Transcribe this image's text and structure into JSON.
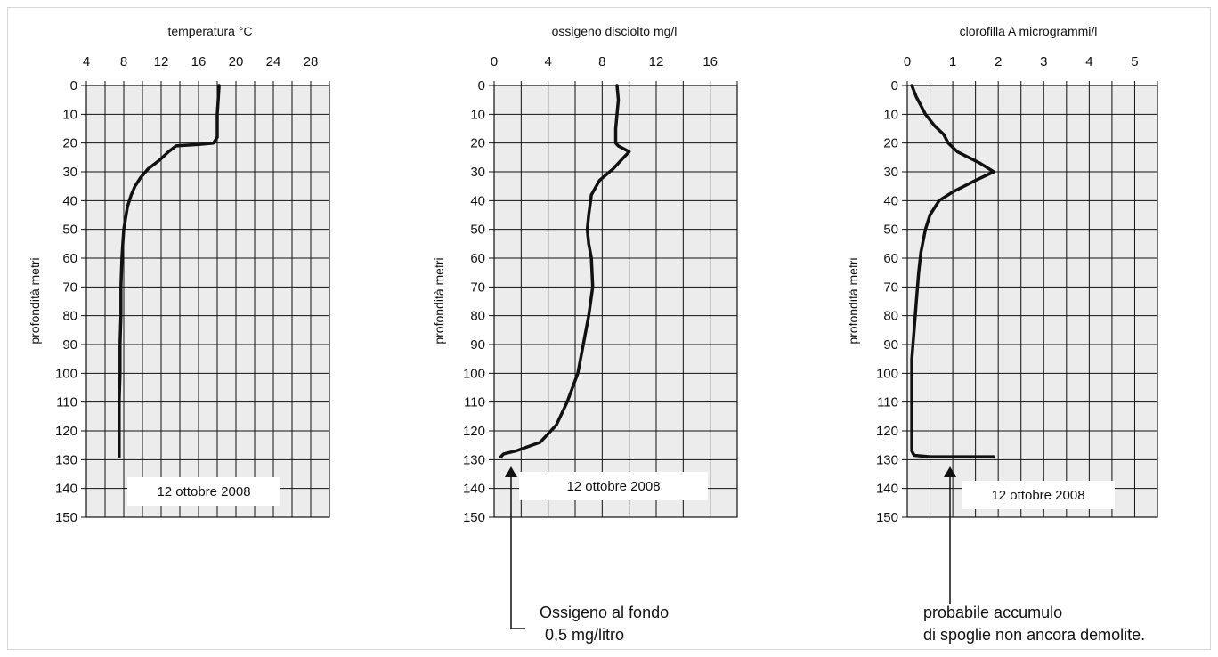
{
  "charts": [
    {
      "title": "temperatura °C",
      "ylabel": "profondità metri",
      "xticks": [
        "4",
        "8",
        "12",
        "16",
        "20",
        "24",
        "28"
      ],
      "yticks": [
        "0",
        "10",
        "20",
        "30",
        "40",
        "50",
        "60",
        "70",
        "80",
        "90",
        "100",
        "110",
        "120",
        "130",
        "140",
        "150"
      ],
      "date_label": "12 ottobre 2008"
    },
    {
      "title": "ossigeno disciolto mg/l",
      "ylabel": "profondità metri",
      "xticks": [
        "0",
        "4",
        "8",
        "12",
        "16"
      ],
      "yticks": [
        "0",
        "10",
        "20",
        "30",
        "40",
        "50",
        "60",
        "70",
        "80",
        "90",
        "100",
        "110",
        "120",
        "130",
        "140",
        "150"
      ],
      "date_label": "12 ottobre 2008",
      "annotation": [
        "Ossigeno al fondo",
        "0,5 mg/litro"
      ]
    },
    {
      "title": "clorofilla A microgrammi/l",
      "ylabel": "profondità metri",
      "xticks": [
        "0",
        "1",
        "2",
        "3",
        "4",
        "5"
      ],
      "yticks": [
        "0",
        "10",
        "20",
        "30",
        "40",
        "50",
        "60",
        "70",
        "80",
        "90",
        "100",
        "110",
        "120",
        "130",
        "140",
        "150"
      ],
      "date_label": "12 ottobre 2008",
      "annotation": [
        "probabile accumulo",
        "di spoglie non ancora demolite."
      ]
    }
  ],
  "chart_data": [
    {
      "type": "line",
      "title": "temperatura °C",
      "xlabel": "",
      "ylabel": "profondità metri",
      "xlim": [
        4,
        30
      ],
      "ylim": [
        0,
        150
      ],
      "y_inverted": true,
      "x_axis_position": "top",
      "grid": true,
      "series": [
        {
          "x": [
            18.2,
            18.1,
            18.0,
            18.0,
            18.0,
            17.6,
            16.0,
            13.6,
            12.8,
            11.8,
            10.6,
            9.8,
            9.2,
            8.8,
            8.4,
            8.2,
            8.0,
            7.9,
            7.8,
            7.7,
            7.7,
            7.6,
            7.6,
            7.5,
            7.5
          ],
          "y": [
            0,
            5,
            10,
            15,
            18,
            20,
            20.5,
            21,
            23,
            26,
            29,
            32,
            35,
            38,
            42,
            46,
            50,
            55,
            60,
            70,
            80,
            90,
            100,
            110,
            129
          ]
        }
      ]
    },
    {
      "type": "line",
      "title": "ossigeno disciolto mg/l",
      "xlabel": "",
      "ylabel": "profondità metri",
      "xlim": [
        0,
        18
      ],
      "ylim": [
        0,
        150
      ],
      "y_inverted": true,
      "x_axis_position": "top",
      "grid": true,
      "series": [
        {
          "x": [
            9.1,
            9.2,
            9.1,
            9.0,
            9.0,
            9.2,
            10.0,
            9.6,
            8.8,
            7.8,
            7.2,
            7.0,
            6.9,
            7.0,
            7.2,
            7.3,
            7.0,
            6.6,
            6.2,
            5.8,
            5.4,
            4.6,
            3.4,
            1.6,
            0.7,
            0.5
          ],
          "y": [
            0,
            5,
            10,
            15,
            20,
            21,
            23,
            25,
            29,
            33,
            38,
            45,
            50,
            55,
            60,
            70,
            80,
            90,
            100,
            105,
            110,
            118,
            124,
            127,
            128,
            129
          ]
        }
      ]
    },
    {
      "type": "line",
      "title": "clorofilla A microgrammi/l",
      "xlabel": "",
      "ylabel": "profondità metri",
      "xlim": [
        0,
        5.5
      ],
      "ylim": [
        0,
        150
      ],
      "y_inverted": true,
      "x_axis_position": "top",
      "grid": true,
      "series": [
        {
          "x": [
            0.1,
            0.2,
            0.3,
            0.4,
            0.6,
            0.8,
            0.9,
            1.1,
            1.6,
            1.9,
            1.5,
            1.0,
            0.7,
            0.5,
            0.4,
            0.3,
            0.25,
            0.2,
            0.15,
            0.1,
            0.1,
            0.1,
            0.1,
            0.1,
            0.1,
            0.15,
            0.5,
            1.9
          ],
          "y": [
            0,
            4,
            7,
            10,
            14,
            17,
            20,
            23,
            27,
            30,
            33,
            37,
            40,
            45,
            50,
            58,
            65,
            75,
            85,
            95,
            105,
            115,
            120,
            125,
            127,
            128.5,
            129,
            129
          ]
        }
      ]
    }
  ]
}
